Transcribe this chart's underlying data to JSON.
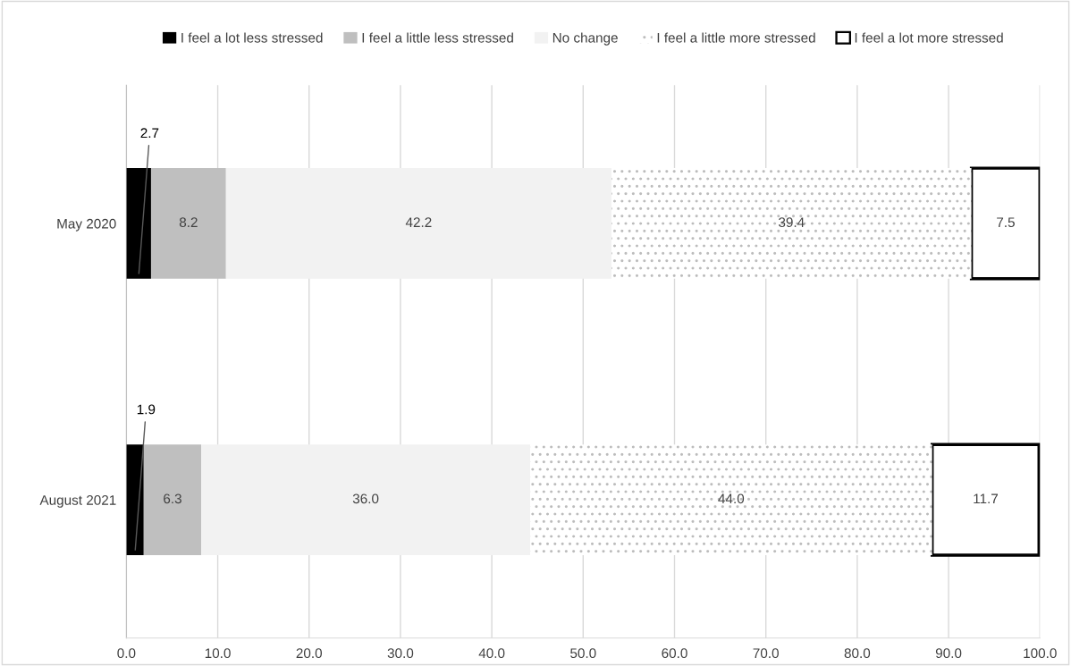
{
  "chart_data": {
    "type": "bar",
    "orientation": "horizontal",
    "stacked": true,
    "categories": [
      "May 2020",
      "August 2021"
    ],
    "series": [
      {
        "name": "I feel a lot less stressed",
        "color": "#000000",
        "values": [
          2.7,
          1.9
        ],
        "value_labels": [
          "2.7",
          "1.9"
        ]
      },
      {
        "name": "I feel a little less stressed",
        "color": "#bfbfbf",
        "values": [
          8.2,
          6.3
        ],
        "value_labels": [
          "8.2",
          "6.3"
        ]
      },
      {
        "name": "No change",
        "color": "#f2f2f2",
        "values": [
          42.2,
          36.0
        ],
        "value_labels": [
          "42.2",
          "36.0"
        ]
      },
      {
        "name": "I feel a little more stressed",
        "color": "#bcbcbc",
        "line_style": "dotted",
        "values": [
          39.4,
          44.0
        ],
        "value_labels": [
          "39.4",
          "44.0"
        ]
      },
      {
        "name": "I feel a lot more stressed",
        "color": "#ffffff",
        "line_style": "solid",
        "values": [
          7.5,
          11.7
        ],
        "value_labels": [
          "7.5",
          "11.7"
        ]
      }
    ],
    "xlim": [
      0,
      100
    ],
    "xticks": [
      {
        "value": 0,
        "label": "0.0"
      },
      {
        "value": 10,
        "label": "10.0"
      },
      {
        "value": 20,
        "label": "20.0"
      },
      {
        "value": 30,
        "label": "30.0"
      },
      {
        "value": 40,
        "label": "40.0"
      },
      {
        "value": 50,
        "label": "50.0"
      },
      {
        "value": 60,
        "label": "60.0"
      },
      {
        "value": 70,
        "label": "70.0"
      },
      {
        "value": 80,
        "label": "80.0"
      },
      {
        "value": 90,
        "label": "90.0"
      },
      {
        "value": 100,
        "label": "100.0"
      }
    ],
    "grid": "x",
    "legend": "top"
  }
}
